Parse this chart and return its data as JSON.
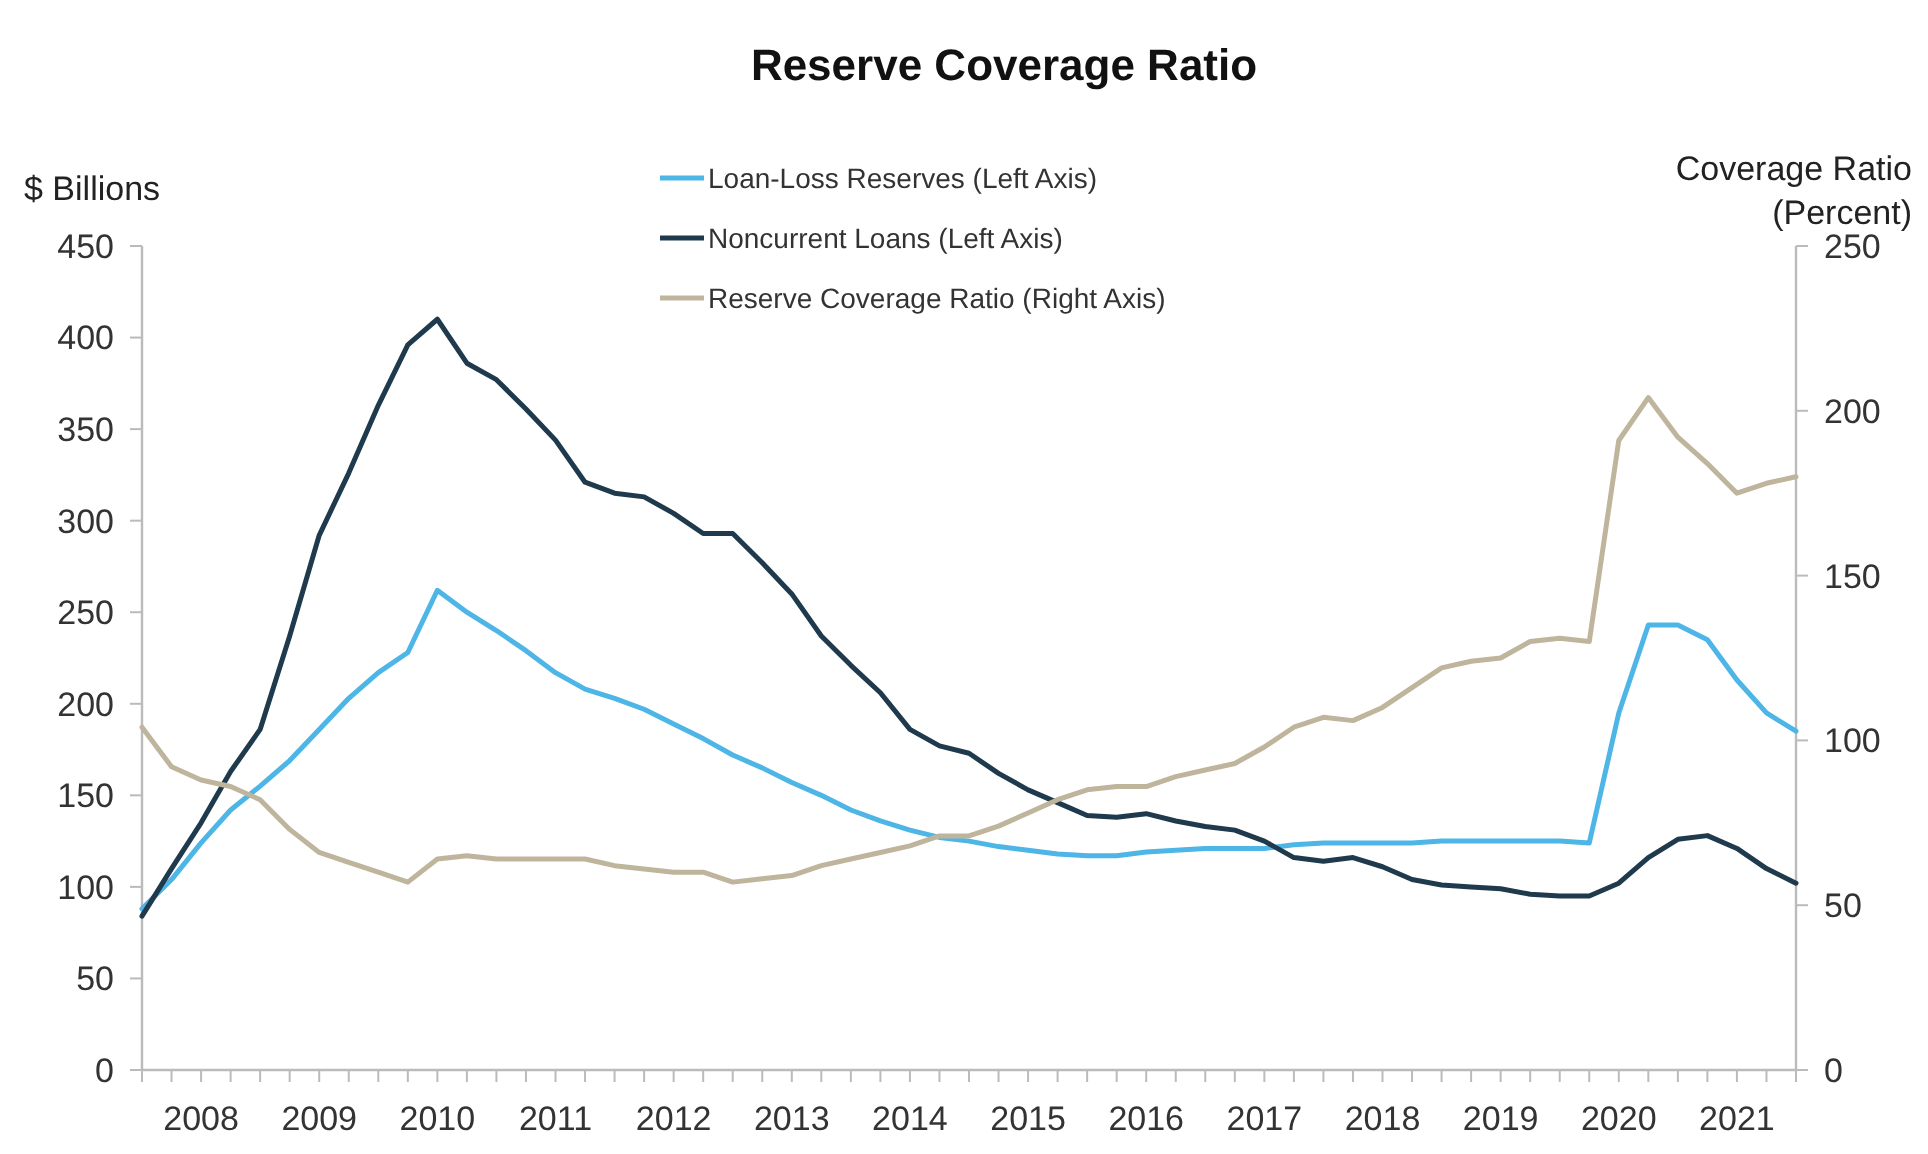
{
  "chart_data": {
    "type": "line",
    "title": "Reserve Coverage Ratio",
    "ylabel": "$ Billions",
    "y2label": "Coverage Ratio\n(Percent)",
    "categories": [
      null,
      null,
      "2008",
      null,
      null,
      null,
      "2009",
      null,
      null,
      null,
      "2010",
      null,
      null,
      null,
      "2011",
      null,
      null,
      null,
      "2012",
      null,
      null,
      null,
      "2013",
      null,
      null,
      null,
      "2014",
      null,
      null,
      null,
      "2015",
      null,
      null,
      null,
      "2016",
      null,
      null,
      null,
      "2017",
      null,
      null,
      null,
      "2018",
      null,
      null,
      null,
      "2019",
      null,
      null,
      null,
      "2020",
      null,
      null,
      null,
      "2021",
      null,
      null
    ],
    "ylim": [
      0,
      450
    ],
    "yticks": [
      0,
      50,
      100,
      150,
      200,
      250,
      300,
      350,
      400,
      450
    ],
    "y2lim": [
      0,
      250
    ],
    "y2ticks": [
      0,
      50,
      100,
      150,
      200,
      250
    ],
    "legend": "top",
    "grid": false,
    "marker": "none",
    "line_style": "solid",
    "series": [
      {
        "name": "Loan-Loss Reserves (Left Axis)",
        "color": "#4db6e6",
        "values": [
          88,
          104,
          124,
          142,
          155,
          169,
          186,
          203,
          217,
          228,
          262,
          250,
          240,
          229,
          217,
          208,
          203,
          197,
          189,
          181,
          172,
          165,
          157,
          150,
          142,
          136,
          131,
          127,
          125,
          122,
          120,
          118,
          117,
          117,
          119,
          120,
          121,
          121,
          121,
          123,
          124,
          124,
          124,
          124,
          125,
          125,
          125,
          125,
          125,
          124,
          195,
          243,
          243,
          235,
          213,
          195,
          185
        ]
      },
      {
        "name": "Noncurrent Loans (Left Axis)",
        "color": "#1e3a4c",
        "values": [
          84,
          110,
          135,
          163,
          186,
          237,
          292,
          326,
          363,
          396,
          410,
          386,
          377,
          361,
          344,
          321,
          315,
          313,
          304,
          293,
          293,
          277,
          260,
          237,
          221,
          206,
          186,
          177,
          173,
          162,
          153,
          146,
          139,
          138,
          140,
          136,
          133,
          131,
          125,
          116,
          114,
          116,
          111,
          104,
          101,
          100,
          99,
          96,
          95,
          95,
          102,
          116,
          126,
          128,
          121,
          110,
          102
        ]
      },
      {
        "name": "Reserve Coverage Ratio (Right Axis)",
        "color": "#bfb59c",
        "axis": "y2",
        "values": [
          104,
          92,
          88,
          86,
          82,
          73,
          66,
          63,
          60,
          57,
          64,
          65,
          64,
          64,
          64,
          64,
          62,
          61,
          60,
          60,
          57,
          58,
          59,
          62,
          64,
          66,
          68,
          71,
          71,
          74,
          78,
          82,
          85,
          86,
          86,
          89,
          91,
          93,
          98,
          104,
          107,
          106,
          110,
          116,
          122,
          124,
          125,
          130,
          131,
          130,
          191,
          204,
          192,
          184,
          175,
          178,
          180
        ]
      }
    ]
  }
}
